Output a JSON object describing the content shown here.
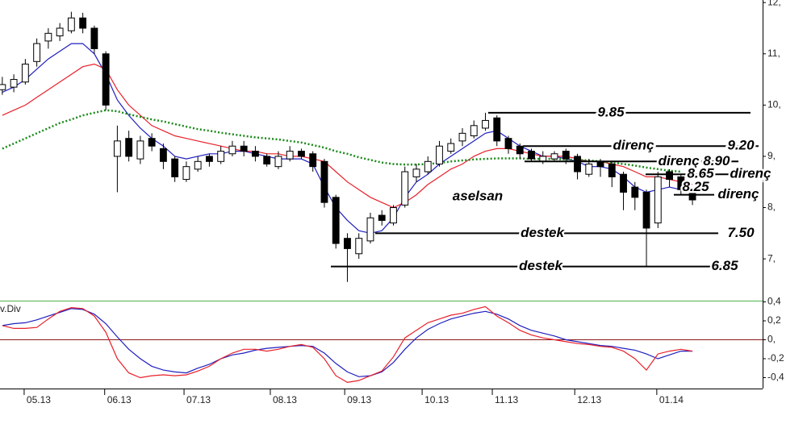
{
  "chart_data": [
    {
      "type": "candlestick",
      "symbol": "aselsan",
      "up_color": "#ffffff",
      "down_color": "#000000",
      "x": [
        0,
        3,
        6,
        9,
        12,
        15,
        18,
        21,
        24,
        27,
        30,
        33,
        36,
        39,
        42,
        45,
        48,
        51,
        54,
        57,
        60,
        63,
        66,
        69,
        72,
        75,
        78,
        81,
        84,
        87,
        90,
        93,
        96,
        99,
        102,
        105,
        108,
        111,
        114,
        117,
        120,
        123,
        126,
        129,
        132,
        135,
        138,
        141,
        144,
        147,
        150,
        153,
        156,
        159,
        162,
        165,
        168,
        171,
        174,
        177,
        180
      ],
      "open": [
        10.3,
        10.35,
        10.45,
        10.85,
        11.25,
        11.35,
        11.45,
        11.7,
        11.5,
        11.0,
        9.0,
        9.35,
        8.95,
        9.35,
        9.15,
        8.95,
        8.55,
        8.75,
        9.0,
        8.9,
        9.05,
        9.2,
        9.1,
        9.0,
        8.8,
        8.95,
        9.1,
        9.05,
        8.9,
        8.2,
        7.4,
        7.1,
        7.35,
        7.85,
        7.7,
        8.05,
        8.6,
        8.7,
        8.85,
        9.1,
        9.3,
        9.4,
        9.55,
        9.75,
        9.35,
        9.2,
        9.1,
        8.9,
        8.95,
        9.1,
        9.0,
        8.65,
        8.9,
        8.85,
        8.65,
        8.4,
        8.3,
        7.7,
        8.7,
        8.6,
        8.3
      ],
      "high": [
        10.55,
        10.6,
        10.9,
        11.3,
        11.5,
        11.6,
        11.82,
        11.8,
        11.55,
        11.05,
        9.6,
        9.5,
        9.4,
        9.45,
        9.25,
        9.0,
        8.9,
        9.0,
        9.05,
        9.2,
        9.3,
        9.3,
        9.2,
        9.05,
        9.1,
        9.2,
        9.15,
        9.1,
        8.95,
        8.25,
        7.5,
        7.5,
        7.9,
        7.95,
        8.05,
        8.8,
        8.85,
        9.0,
        9.3,
        9.35,
        9.55,
        9.7,
        9.85,
        9.8,
        9.4,
        9.25,
        9.15,
        9.1,
        9.1,
        9.15,
        9.05,
        8.95,
        8.95,
        8.9,
        8.7,
        8.5,
        8.35,
        8.7,
        8.75,
        8.65,
        8.35
      ],
      "low": [
        10.2,
        10.25,
        10.4,
        10.75,
        11.1,
        11.25,
        11.4,
        11.4,
        11.0,
        9.9,
        8.3,
        8.9,
        8.85,
        9.1,
        8.75,
        8.5,
        8.5,
        8.7,
        8.8,
        8.85,
        9.0,
        9.0,
        8.9,
        8.8,
        8.75,
        8.9,
        8.95,
        8.7,
        8.0,
        7.2,
        6.55,
        7.0,
        7.3,
        7.65,
        7.65,
        8.0,
        8.5,
        8.65,
        8.8,
        9.05,
        9.2,
        9.35,
        9.5,
        9.2,
        9.05,
        8.95,
        8.9,
        8.85,
        8.9,
        8.85,
        8.55,
        8.6,
        8.6,
        8.4,
        7.95,
        7.95,
        6.85,
        7.6,
        8.4,
        8.25,
        8.05
      ],
      "close": [
        10.4,
        10.5,
        10.8,
        11.2,
        11.4,
        11.5,
        11.7,
        11.5,
        11.1,
        10.0,
        9.3,
        9.0,
        9.3,
        9.2,
        8.9,
        8.6,
        8.8,
        8.9,
        8.9,
        9.1,
        9.2,
        9.1,
        9.0,
        8.85,
        9.0,
        9.1,
        9.0,
        8.8,
        8.1,
        7.3,
        7.2,
        7.4,
        7.8,
        7.75,
        8.0,
        8.7,
        8.75,
        8.9,
        9.2,
        9.25,
        9.45,
        9.6,
        9.7,
        9.3,
        9.15,
        9.05,
        8.95,
        9.0,
        9.05,
        8.95,
        8.7,
        8.85,
        8.8,
        8.6,
        8.3,
        8.2,
        7.6,
        8.6,
        8.55,
        8.35,
        8.15
      ],
      "series": [
        {
          "color": "#1f1fbf",
          "style": "solid",
          "values": [
            10.25,
            10.35,
            10.5,
            10.7,
            10.9,
            11.05,
            11.2,
            11.2,
            11.0,
            10.6,
            10.1,
            9.8,
            9.55,
            9.35,
            9.2,
            9.0,
            8.95,
            9.0,
            9.05,
            9.05,
            9.1,
            9.1,
            9.05,
            9.0,
            8.95,
            8.95,
            8.95,
            8.85,
            8.4,
            8.0,
            7.75,
            7.55,
            7.5,
            7.55,
            7.8,
            8.2,
            8.5,
            8.65,
            8.85,
            9.0,
            9.15,
            9.3,
            9.45,
            9.5,
            9.35,
            9.2,
            9.1,
            9.0,
            9.0,
            8.95,
            8.9,
            8.8,
            8.8,
            8.75,
            8.6,
            8.4,
            8.3,
            8.35,
            8.4,
            8.35,
            8.3
          ]
        },
        {
          "color": "#e8202a",
          "style": "solid",
          "values": [
            9.8,
            9.9,
            10.0,
            10.15,
            10.3,
            10.45,
            10.6,
            10.75,
            10.8,
            10.7,
            10.3,
            10.0,
            9.8,
            9.6,
            9.5,
            9.4,
            9.35,
            9.3,
            9.25,
            9.2,
            9.15,
            9.1,
            9.1,
            9.05,
            9.05,
            9.0,
            9.0,
            8.95,
            8.9,
            8.7,
            8.5,
            8.35,
            8.2,
            8.1,
            8.0,
            8.1,
            8.25,
            8.45,
            8.6,
            8.75,
            8.85,
            9.0,
            9.1,
            9.15,
            9.15,
            9.1,
            9.05,
            9.0,
            9.0,
            9.0,
            8.95,
            8.9,
            8.9,
            8.85,
            8.8,
            8.7,
            8.6,
            8.6,
            8.55,
            8.5,
            8.45
          ]
        },
        {
          "color": "#1a8a1a",
          "style": "dotted",
          "values": [
            9.15,
            9.25,
            9.35,
            9.45,
            9.55,
            9.65,
            9.72,
            9.8,
            9.85,
            9.9,
            9.88,
            9.82,
            9.77,
            9.72,
            9.68,
            9.63,
            9.58,
            9.53,
            9.5,
            9.46,
            9.43,
            9.4,
            9.37,
            9.35,
            9.33,
            9.3,
            9.27,
            9.22,
            9.17,
            9.1,
            9.05,
            8.98,
            8.93,
            8.88,
            8.85,
            8.84,
            8.84,
            8.85,
            8.87,
            8.9,
            8.92,
            8.94,
            8.95,
            8.96,
            8.96,
            8.96,
            8.95,
            8.95,
            8.95,
            8.94,
            8.93,
            8.92,
            8.9,
            8.88,
            8.85,
            8.82,
            8.78,
            8.75,
            8.72,
            8.7,
            null
          ]
        }
      ],
      "xlim": [
        -0.6,
        198.3
      ],
      "ylim": [
        6.2,
        12.05
      ],
      "yticks": [
        {
          "value": 12,
          "label": "12,"
        },
        {
          "value": 11,
          "label": "11,"
        },
        {
          "value": 10,
          "label": "10,"
        },
        {
          "value": 9,
          "label": "9,"
        },
        {
          "value": 8,
          "label": "8,"
        },
        {
          "value": 7,
          "label": "7,"
        }
      ],
      "annotations": [
        {
          "level": 9.85,
          "label": "9.85"
        },
        {
          "level": 9.2,
          "note": "direnç",
          "label": "9.20"
        },
        {
          "level": 8.9,
          "label": "direnç 8.90"
        },
        {
          "level": 8.65,
          "label": "8.65",
          "note": "direnç"
        },
        {
          "level": 8.25,
          "label": "8.25",
          "note": "direnç"
        },
        {
          "level": 7.5,
          "note": "destek",
          "label": "7.50"
        },
        {
          "level": 6.85,
          "note": "destek",
          "label": "6.85"
        }
      ]
    },
    {
      "type": "line",
      "title": "v.Div",
      "series": [
        {
          "color": "#1f1fbf",
          "values": [
            0.15,
            0.17,
            0.18,
            0.21,
            0.25,
            0.29,
            0.33,
            0.32,
            0.27,
            0.17,
            0.03,
            -0.1,
            -0.2,
            -0.28,
            -0.32,
            -0.34,
            -0.35,
            -0.3,
            -0.26,
            -0.2,
            -0.16,
            -0.14,
            -0.11,
            -0.09,
            -0.08,
            -0.07,
            -0.06,
            -0.07,
            -0.14,
            -0.25,
            -0.34,
            -0.39,
            -0.38,
            -0.34,
            -0.24,
            -0.1,
            0.02,
            0.11,
            0.17,
            0.22,
            0.25,
            0.28,
            0.3,
            0.27,
            0.22,
            0.15,
            0.1,
            0.07,
            0.04,
            0.0,
            -0.02,
            -0.04,
            -0.06,
            -0.07,
            -0.09,
            -0.11,
            -0.15,
            -0.2,
            -0.16,
            -0.12,
            -0.12
          ]
        },
        {
          "color": "#e8202a",
          "values": [
            0.15,
            0.12,
            0.12,
            0.13,
            0.22,
            0.3,
            0.34,
            0.33,
            0.25,
            0.08,
            -0.2,
            -0.35,
            -0.4,
            -0.38,
            -0.37,
            -0.38,
            -0.37,
            -0.33,
            -0.28,
            -0.2,
            -0.14,
            -0.1,
            -0.1,
            -0.12,
            -0.1,
            -0.07,
            -0.05,
            -0.08,
            -0.2,
            -0.38,
            -0.45,
            -0.43,
            -0.38,
            -0.33,
            -0.18,
            0.02,
            0.1,
            0.18,
            0.22,
            0.26,
            0.28,
            0.32,
            0.35,
            0.25,
            0.18,
            0.1,
            0.05,
            0.02,
            0.0,
            -0.02,
            -0.04,
            -0.05,
            -0.07,
            -0.08,
            -0.12,
            -0.2,
            -0.32,
            -0.15,
            -0.12,
            -0.1,
            -0.12
          ]
        }
      ],
      "xlim": [
        -0.6,
        198.3
      ],
      "ylim": [
        -0.515,
        0.396
      ],
      "yticks": [
        {
          "value": 0.4,
          "label": "0,4"
        },
        {
          "value": 0.2,
          "label": "0,2"
        },
        {
          "value": 0,
          "label": "0,"
        },
        {
          "value": -0.2,
          "label": "-0,2"
        },
        {
          "value": -0.4,
          "label": "-0,4"
        }
      ],
      "xticks": [
        {
          "value": 5.7,
          "label": "05.13"
        },
        {
          "value": 26.7,
          "label": "06.13"
        },
        {
          "value": 47.4,
          "label": "07.13"
        },
        {
          "value": 69.9,
          "label": "08.13"
        },
        {
          "value": 89.3,
          "label": "09.13"
        },
        {
          "value": 109.5,
          "label": "10.13"
        },
        {
          "value": 127.8,
          "label": "11.13"
        },
        {
          "value": 149.3,
          "label": "12.13"
        },
        {
          "value": 170.7,
          "label": "01.14"
        }
      ]
    }
  ]
}
